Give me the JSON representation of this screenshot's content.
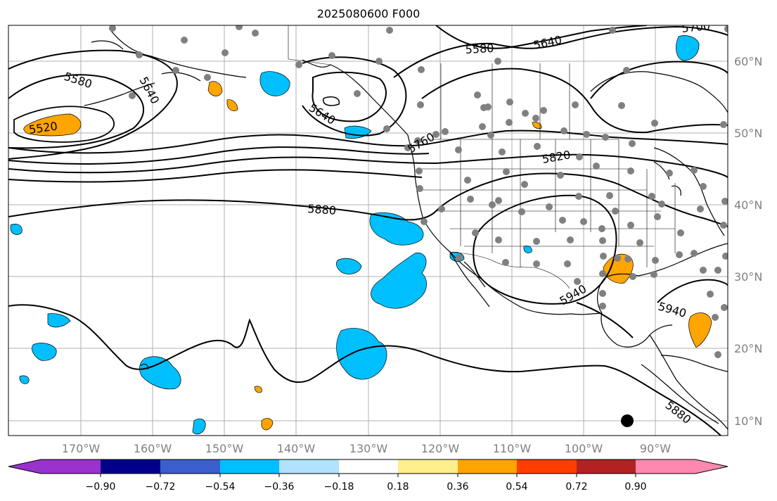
{
  "title": "2025080600 F000",
  "map": {
    "lon_labels": [
      "170°W",
      "160°W",
      "150°W",
      "140°W",
      "130°W",
      "120°W",
      "110°W",
      "100°W",
      "90°W"
    ],
    "lat_labels": [
      "60°N",
      "50°N",
      "40°N",
      "30°N",
      "20°N",
      "10°N"
    ],
    "contour_labels": [
      "5520",
      "5580",
      "5640",
      "5580",
      "5640",
      "5700",
      "5640",
      "5760",
      "5820",
      "5880",
      "5940",
      "5940",
      "5880"
    ],
    "contour_levels": [
      5520,
      5580,
      5640,
      5700,
      5760,
      5820,
      5880,
      5940
    ],
    "grid_color": "#b0b0b0",
    "tick_label_color": "#808080",
    "station_color": "#808080",
    "marker": "black-dot"
  },
  "colorbar": {
    "ticks": [
      "−0.90",
      "−0.72",
      "−0.54",
      "−0.36",
      "−0.18",
      "0.18",
      "0.36",
      "0.54",
      "0.72",
      "0.90"
    ],
    "colors": [
      "#9932cc",
      "#00008b",
      "#3a5fcd",
      "#00bfff",
      "#b0e2ff",
      "#ffffff",
      "#ffee8c",
      "#ffa500",
      "#ff3d00",
      "#b22222",
      "#ff88b0"
    ]
  }
}
